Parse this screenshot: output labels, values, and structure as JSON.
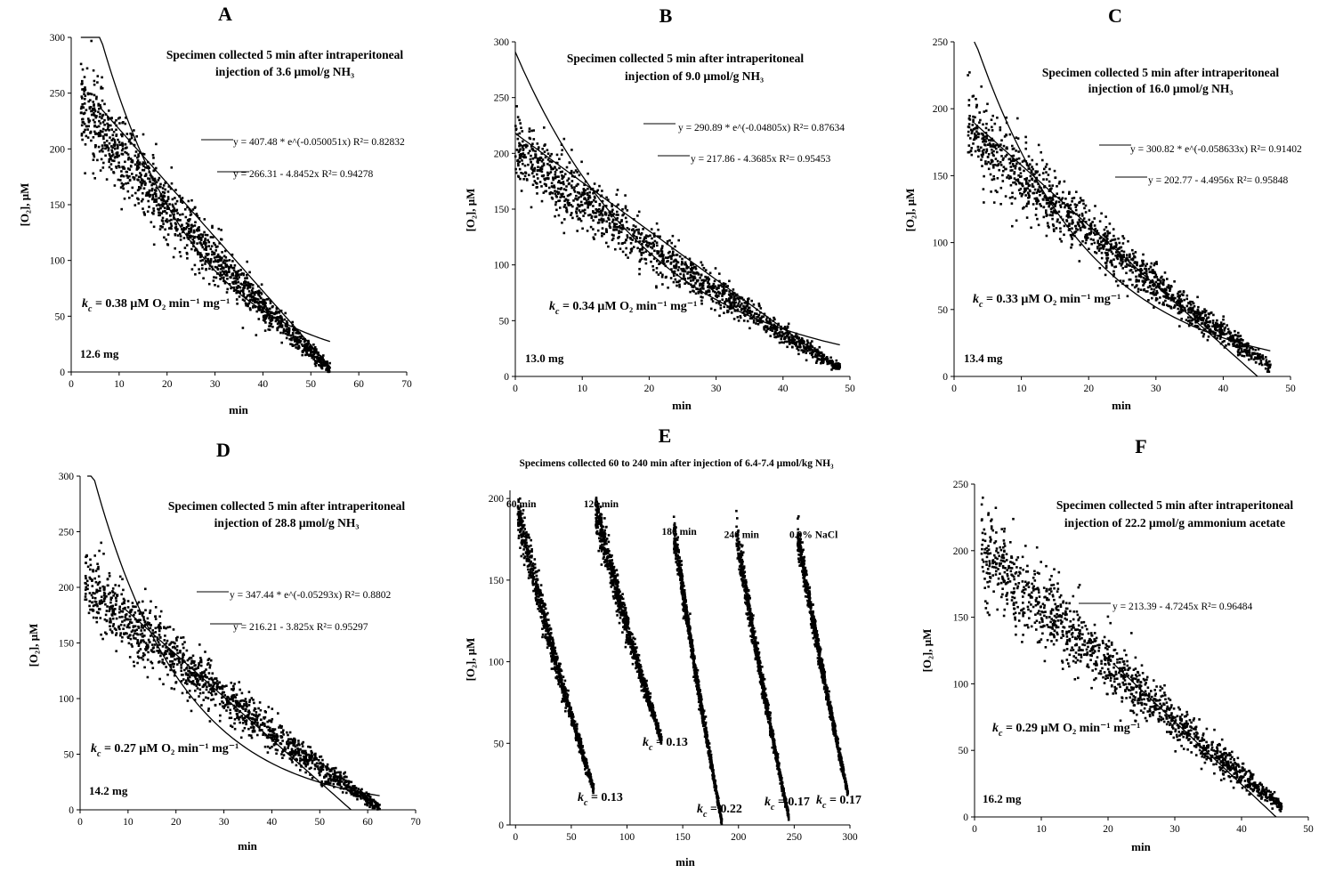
{
  "chart_data": [
    {
      "id": "A",
      "type": "scatter",
      "panel_letter": "A",
      "title_lines": [
        "Specimen collected 5 min after intraperitoneal",
        "injection of 3.6 μmol/g NH₃"
      ],
      "xlabel": "min",
      "ylabel": "[O₂], μM",
      "xlim": [
        0,
        70
      ],
      "ylim": [
        0,
        300
      ],
      "xticks": [
        0,
        10,
        20,
        30,
        40,
        50,
        60,
        70
      ],
      "yticks": [
        0,
        50,
        100,
        150,
        200,
        250,
        300
      ],
      "fits": [
        {
          "type": "exponential",
          "a": 407.48,
          "b": -0.050051,
          "x_range": [
            2,
            54
          ],
          "equation": "y = 407.48 * e^(-0.050051x)",
          "r2": "R²= 0.82832"
        },
        {
          "type": "linear",
          "intercept": 266.31,
          "slope": -4.8452,
          "x_range": [
            6,
            54
          ],
          "equation": "y = 266.31 - 4.8452x",
          "r2": "R²= 0.94278"
        }
      ],
      "scatter": {
        "x_range": [
          2,
          54
        ],
        "start_y": 240,
        "end_y": 3,
        "curvature": 0.35,
        "noise_start": 28,
        "noise_end": 3,
        "n": 1400
      },
      "kc_value": "= 0.38 μM O₂ min⁻¹ mg⁻¹",
      "mass": "12.6 mg"
    },
    {
      "id": "B",
      "type": "scatter",
      "panel_letter": "B",
      "title_lines": [
        "Specimen collected 5 min after intraperitoneal",
        "injection of 9.0 μmol/g NH₃"
      ],
      "xlabel": "min",
      "ylabel": "[O₂], μM",
      "xlim": [
        0,
        50
      ],
      "ylim": [
        0,
        300
      ],
      "xticks": [
        0,
        10,
        20,
        30,
        40,
        50
      ],
      "yticks": [
        0,
        50,
        100,
        150,
        200,
        250,
        300
      ],
      "fits": [
        {
          "type": "exponential",
          "a": 290.89,
          "b": -0.04805,
          "x_range": [
            0,
            48.5
          ],
          "equation": "y = 290.89 * e^(-0.04805x)",
          "r2": "R²= 0.87634"
        },
        {
          "type": "linear",
          "intercept": 217.86,
          "slope": -4.3685,
          "x_range": [
            0,
            48.5
          ],
          "equation": "y = 217.86 - 4.3685x",
          "r2": "R²= 0.95453"
        }
      ],
      "scatter": {
        "x_range": [
          0,
          48.5
        ],
        "start_y": 205,
        "end_y": 8,
        "curvature": 0.3,
        "noise_start": 22,
        "noise_end": 3,
        "n": 1400
      },
      "kc_value": "= 0.34 μM O₂ min⁻¹ mg⁻¹",
      "mass": "13.0 mg"
    },
    {
      "id": "C",
      "type": "scatter",
      "panel_letter": "C",
      "title_lines": [
        "Specimen collected 5 min after intraperitoneal",
        "injection of 16.0 μmol/g NH₃"
      ],
      "xlabel": "min",
      "ylabel": "[O₂], μM",
      "xlim": [
        0,
        50
      ],
      "ylim": [
        0,
        250
      ],
      "xticks": [
        0,
        10,
        20,
        30,
        40,
        50
      ],
      "yticks": [
        0,
        50,
        100,
        150,
        200,
        250
      ],
      "fits": [
        {
          "type": "exponential",
          "a": 300.82,
          "b": -0.058633,
          "x_range": [
            3,
            47
          ],
          "equation": "y = 300.82 * e^(-0.058633x)",
          "r2": "R²= 0.91402"
        },
        {
          "type": "linear",
          "intercept": 202.77,
          "slope": -4.4956,
          "x_range": [
            3,
            45.1
          ],
          "equation": "y = 202.77 - 4.4956x",
          "r2": "R²= 0.95848"
        }
      ],
      "scatter": {
        "x_range": [
          2,
          47
        ],
        "start_y": 185,
        "end_y": 8,
        "curvature": 0.3,
        "noise_start": 20,
        "noise_end": 3,
        "n": 1400
      },
      "kc_value": "= 0.33 μM O₂ min⁻¹ mg⁻¹",
      "mass": "13.4 mg"
    },
    {
      "id": "D",
      "type": "scatter",
      "panel_letter": "D",
      "title_lines": [
        "Specimen collected 5 min after intraperitoneal",
        "injection of 28.8 μmol/g NH₃"
      ],
      "xlabel": "min",
      "ylabel": "[O₂], μM",
      "xlim": [
        0,
        70
      ],
      "ylim": [
        0,
        300
      ],
      "xticks": [
        0,
        10,
        20,
        30,
        40,
        50,
        60,
        70
      ],
      "yticks": [
        0,
        50,
        100,
        150,
        200,
        250,
        300
      ],
      "fits": [
        {
          "type": "exponential",
          "a": 347.44,
          "b": -0.05293,
          "x_range": [
            1.5,
            62.5
          ],
          "equation": "y = 347.44 * e^(-0.05293x)",
          "r2": "R²= 0.8802"
        },
        {
          "type": "linear",
          "intercept": 216.21,
          "slope": -3.825,
          "x_range": [
            9,
            56.5
          ],
          "equation": "y = 216.21 - 3.825x",
          "r2": "R²= 0.95297"
        }
      ],
      "scatter": {
        "x_range": [
          1,
          62.5
        ],
        "start_y": 205,
        "end_y": 2,
        "curvature": 0.3,
        "noise_start": 22,
        "noise_end": 3,
        "n": 1400
      },
      "kc_value": "= 0.27 μM O₂ min⁻¹ mg⁻¹",
      "mass": "14.2 mg"
    },
    {
      "id": "E",
      "type": "scatter",
      "panel_letter": "E",
      "title_lines": [
        "Specimens collected 60 to 240 min after injection of 6.4-7.4 μmol/kg NH₃"
      ],
      "xlabel": "min",
      "ylabel": "[O₂], μM",
      "xlim": [
        -5,
        300
      ],
      "ylim": [
        0,
        205
      ],
      "xticks": [
        0,
        50,
        100,
        150,
        200,
        250,
        300
      ],
      "yticks": [
        0,
        50,
        100,
        150,
        200
      ],
      "traces": [
        {
          "label": "60 min",
          "kc": "= 0.13",
          "x_range": [
            2,
            70
          ],
          "start_y": 192,
          "end_y": 22,
          "curvature": 0.3,
          "noise_start": 9,
          "noise_end": 2
        },
        {
          "label": "120 min",
          "kc": "= 0.13",
          "x_range": [
            72,
            131
          ],
          "start_y": 192,
          "end_y": 52,
          "curvature": 0.25,
          "noise_start": 9,
          "noise_end": 2
        },
        {
          "label": "180 min",
          "kc": "= 0.22",
          "x_range": [
            142,
            185
          ],
          "start_y": 180,
          "end_y": 2,
          "curvature": 0.25,
          "noise_start": 7,
          "noise_end": 1.5
        },
        {
          "label": "240 min",
          "kc": "= 0.17",
          "x_range": [
            198,
            245
          ],
          "start_y": 178,
          "end_y": 5,
          "curvature": 0.25,
          "noise_start": 7,
          "noise_end": 1.5
        },
        {
          "label": "0.9% NaCl",
          "kc": "= 0.17",
          "x_range": [
            253,
            298
          ],
          "start_y": 178,
          "end_y": 20,
          "curvature": 0.25,
          "noise_start": 7,
          "noise_end": 1.5
        }
      ]
    },
    {
      "id": "F",
      "type": "scatter",
      "panel_letter": "F",
      "title_lines": [
        "Specimen collected 5 min after intraperitoneal",
        "injection of 22.2 μmol/g ammonium acetate"
      ],
      "xlabel": "min",
      "ylabel": "[O₂], μM",
      "xlim": [
        0,
        50
      ],
      "ylim": [
        0,
        250
      ],
      "xticks": [
        0,
        10,
        20,
        30,
        40,
        50
      ],
      "yticks": [
        0,
        50,
        100,
        150,
        200,
        250
      ],
      "fits": [
        {
          "type": "linear",
          "intercept": 213.39,
          "slope": -4.7245,
          "x_range": [
            21,
            45.2
          ],
          "equation": "y = 213.39 - 4.7245x",
          "r2": "R²= 0.96484"
        }
      ],
      "scatter": {
        "x_range": [
          1,
          46
        ],
        "start_y": 200,
        "end_y": 8,
        "curvature": 0.2,
        "noise_start": 24,
        "noise_end": 3,
        "n": 1400
      },
      "kc_value": "= 0.29 μM O₂ min⁻¹ mg⁻¹",
      "mass": "16.2 mg"
    }
  ]
}
